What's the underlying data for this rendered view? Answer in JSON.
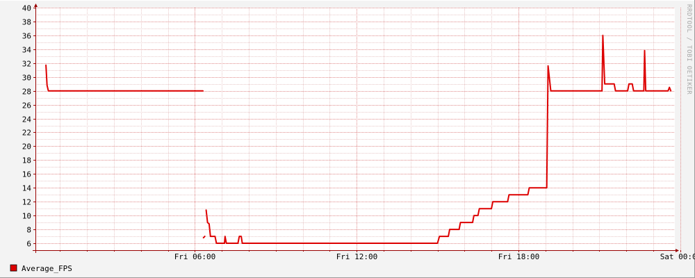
{
  "watermark": "RRDTOOL / TOBI OETIKER",
  "colors": {
    "background": "#f3f3f3",
    "plot_background": "#ffffff",
    "grid_minor": "#e8c8c8",
    "grid_major": "#e08a8a",
    "series": "#dd0000",
    "axis": "#990000"
  },
  "chart_data": {
    "type": "line",
    "title": "",
    "xlabel": "",
    "ylabel": "",
    "ylim": [
      5,
      40
    ],
    "yticks": [
      6,
      8,
      10,
      12,
      14,
      16,
      18,
      20,
      22,
      24,
      26,
      28,
      30,
      32,
      34,
      36,
      38,
      40
    ],
    "xlim_hours": [
      0.09,
      23.8
    ],
    "xticks": [
      {
        "hour": 6,
        "label": "Fri 06:00"
      },
      {
        "hour": 12,
        "label": "Fri 12:00"
      },
      {
        "hour": 18,
        "label": "Fri 18:00"
      },
      {
        "hour": 24,
        "label": "Sat 00:00"
      }
    ],
    "grid": true,
    "legend": {
      "position": "bottom-left",
      "entries": [
        {
          "name": "Average_FPS",
          "color": "#dd0000"
        }
      ]
    },
    "series": [
      {
        "name": "Average_FPS",
        "color": "#dd0000",
        "segments": [
          [
            [
              0.48,
              31.7
            ],
            [
              0.52,
              28.8
            ],
            [
              0.57,
              28.0
            ],
            [
              6.3,
              28.0
            ]
          ],
          [
            [
              6.32,
              6.8
            ],
            [
              6.37,
              7.0
            ]
          ],
          [
            [
              6.42,
              10.8
            ],
            [
              6.47,
              9.0
            ],
            [
              6.53,
              8.8
            ],
            [
              6.58,
              7.0
            ],
            [
              6.75,
              7.0
            ],
            [
              6.8,
              6.0
            ],
            [
              7.1,
              6.0
            ],
            [
              7.12,
              7.0
            ],
            [
              7.17,
              6.0
            ],
            [
              7.6,
              6.0
            ],
            [
              7.65,
              7.0
            ],
            [
              7.72,
              7.0
            ],
            [
              7.76,
              6.0
            ],
            [
              15.0,
              6.0
            ],
            [
              15.07,
              7.0
            ],
            [
              15.4,
              7.0
            ],
            [
              15.45,
              8.0
            ],
            [
              15.8,
              8.0
            ],
            [
              15.85,
              9.0
            ],
            [
              16.3,
              9.0
            ],
            [
              16.35,
              10.0
            ],
            [
              16.5,
              10.0
            ],
            [
              16.55,
              11.0
            ],
            [
              17.0,
              11.0
            ],
            [
              17.05,
              12.0
            ],
            [
              17.6,
              12.0
            ],
            [
              17.65,
              13.0
            ],
            [
              18.35,
              13.0
            ],
            [
              18.4,
              14.0
            ],
            [
              19.05,
              14.0
            ],
            [
              19.1,
              31.6
            ],
            [
              19.2,
              28.0
            ],
            [
              21.1,
              28.0
            ],
            [
              21.13,
              36.0
            ],
            [
              21.2,
              29.0
            ],
            [
              21.55,
              29.0
            ],
            [
              21.6,
              28.0
            ],
            [
              22.05,
              28.0
            ],
            [
              22.1,
              29.0
            ],
            [
              22.22,
              29.0
            ],
            [
              22.27,
              28.0
            ],
            [
              22.65,
              28.0
            ],
            [
              22.68,
              33.8
            ],
            [
              22.72,
              28.0
            ],
            [
              23.55,
              28.0
            ],
            [
              23.6,
              28.5
            ],
            [
              23.65,
              28.0
            ]
          ]
        ]
      }
    ]
  }
}
